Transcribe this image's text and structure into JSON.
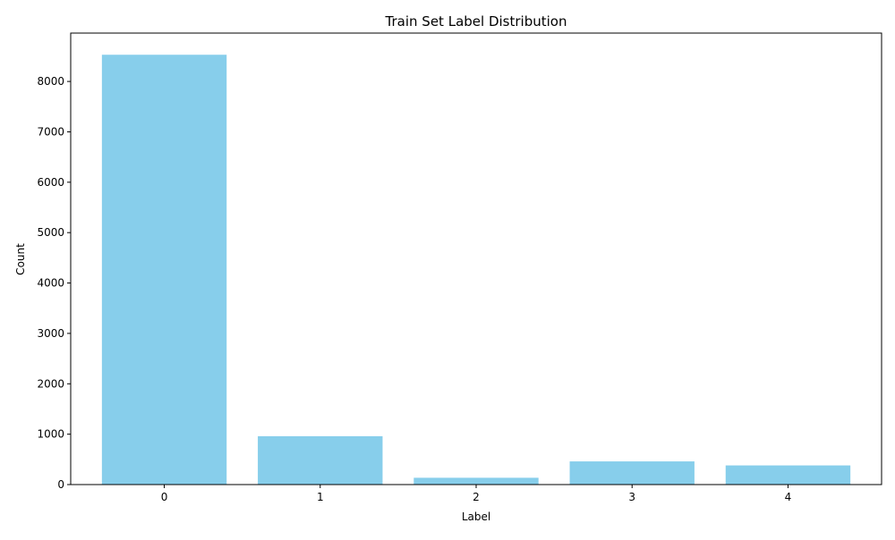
{
  "chart_data": {
    "type": "bar",
    "title": "Train Set Label Distribution",
    "xlabel": "Label",
    "ylabel": "Count",
    "categories": [
      "0",
      "1",
      "2",
      "3",
      "4"
    ],
    "values": [
      8530,
      960,
      135,
      460,
      380
    ],
    "ylim": [
      0,
      8960
    ],
    "yticks": [
      0,
      1000,
      2000,
      3000,
      4000,
      5000,
      6000,
      7000,
      8000
    ],
    "grid": false,
    "legend": "none",
    "bar_color": "#87ceeb"
  }
}
